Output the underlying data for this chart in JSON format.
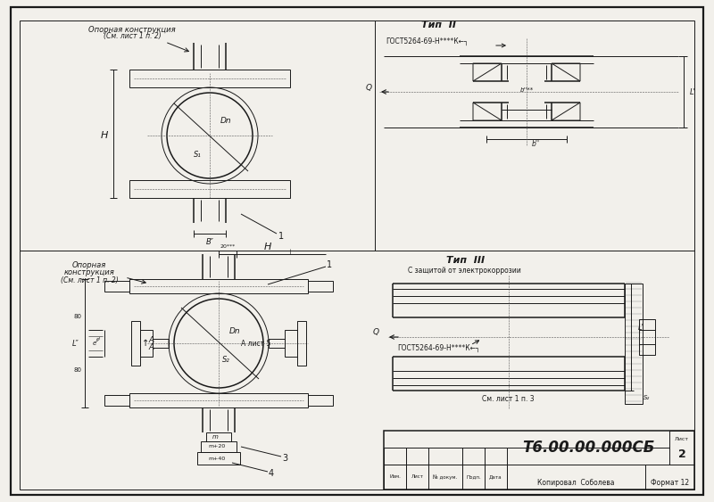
{
  "bg_color": "#e8e8e8",
  "paper_color": "#f2f0eb",
  "line_color": "#1a1a1a",
  "title_block": {
    "doc_number": "Т6.00.00.000СБ",
    "sheet": "2",
    "format": "Формат 12",
    "copied": "Копировал  Соболева",
    "columns": [
      "Изм.",
      "Лист",
      "№ докум.",
      "Подп.",
      "Дата"
    ]
  },
  "outer_border": [
    12,
    8,
    788,
    555
  ],
  "inner_border": [
    22,
    14,
    778,
    540
  ]
}
